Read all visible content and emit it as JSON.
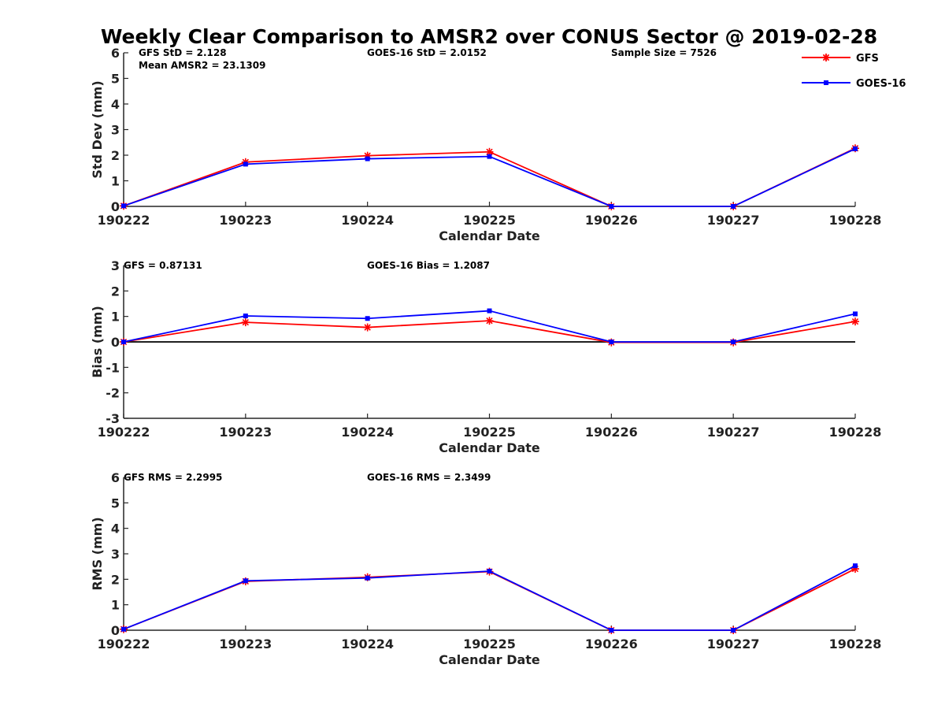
{
  "title": "Weekly Clear Comparison to AMSR2 over CONUS Sector @ 2019-02-28",
  "legend": {
    "placement": "top-right",
    "entries": [
      {
        "name": "GFS",
        "color": "#ff0000",
        "marker": "asterisk"
      },
      {
        "name": "GOES-16",
        "color": "#0000ff",
        "marker": "square"
      }
    ]
  },
  "chart_data": [
    {
      "type": "line",
      "categories": [
        "190222",
        "190223",
        "190224",
        "190225",
        "190226",
        "190227",
        "190228"
      ],
      "xlabel": "Calendar Date",
      "ylabel": "Std Dev (mm)",
      "ylim": [
        0,
        6
      ],
      "yticks": [
        0,
        1,
        2,
        3,
        4,
        5,
        6
      ],
      "yticklabels": [
        "0",
        "1",
        "2",
        "3",
        "4",
        "5",
        "6"
      ],
      "zero_line": false,
      "annotations": [
        "GFS StD = 2.128",
        "Mean AMSR2 = 23.1309",
        "GOES-16 StD = 2.0152",
        "Sample Size = 7526"
      ],
      "series": [
        {
          "name": "GFS",
          "color": "#ff0000",
          "marker": "asterisk",
          "values": [
            0.02,
            1.73,
            1.98,
            2.13,
            0.0,
            0.0,
            2.27
          ]
        },
        {
          "name": "GOES-16",
          "color": "#0000ff",
          "marker": "square",
          "values": [
            0.02,
            1.65,
            1.86,
            1.95,
            0.0,
            0.0,
            2.25
          ]
        }
      ]
    },
    {
      "type": "line",
      "categories": [
        "190222",
        "190223",
        "190224",
        "190225",
        "190226",
        "190227",
        "190228"
      ],
      "xlabel": "Calendar Date",
      "ylabel": "Bias (mm)",
      "ylim": [
        -3,
        3
      ],
      "yticks": [
        -3,
        -2,
        -1,
        0,
        1,
        2,
        3
      ],
      "yticklabels": [
        "-3",
        "-2",
        "-1",
        "0",
        "1",
        "2",
        "3"
      ],
      "zero_line": true,
      "annotations": [
        "GFS = 0.87131",
        "GOES-16 Bias  = 1.2087"
      ],
      "series": [
        {
          "name": "GFS",
          "color": "#ff0000",
          "marker": "asterisk",
          "values": [
            0.0,
            0.77,
            0.57,
            0.83,
            -0.02,
            -0.02,
            0.8
          ]
        },
        {
          "name": "GOES-16",
          "color": "#0000ff",
          "marker": "square",
          "values": [
            0.0,
            1.02,
            0.92,
            1.22,
            0.0,
            0.0,
            1.1
          ]
        }
      ]
    },
    {
      "type": "line",
      "categories": [
        "190222",
        "190223",
        "190224",
        "190225",
        "190226",
        "190227",
        "190228"
      ],
      "xlabel": "Calendar Date",
      "ylabel": "RMS (mm)",
      "ylim": [
        0,
        6
      ],
      "yticks": [
        0,
        1,
        2,
        3,
        4,
        5,
        6
      ],
      "yticklabels": [
        "0",
        "1",
        "2",
        "3",
        "4",
        "5",
        "6"
      ],
      "zero_line": false,
      "annotations": [
        "GFS RMS = 2.2995",
        "GOES-16 RMS = 2.3499"
      ],
      "series": [
        {
          "name": "GFS",
          "color": "#ff0000",
          "marker": "asterisk",
          "values": [
            0.04,
            1.92,
            2.08,
            2.3,
            0.0,
            0.0,
            2.41
          ]
        },
        {
          "name": "GOES-16",
          "color": "#0000ff",
          "marker": "square",
          "values": [
            0.04,
            1.94,
            2.05,
            2.32,
            0.0,
            0.0,
            2.53
          ]
        }
      ]
    }
  ]
}
